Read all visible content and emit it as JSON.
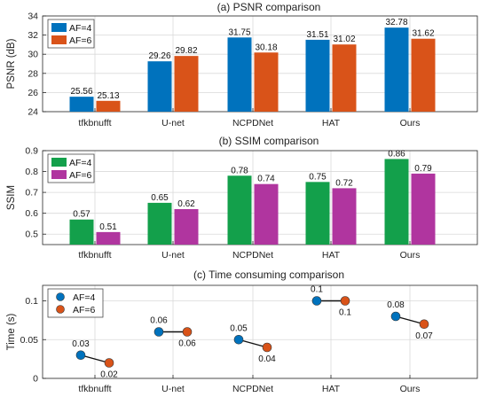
{
  "chart_data": [
    {
      "type": "bar",
      "title": "(a) PSNR comparison",
      "ylabel": "PSNR (dB)",
      "xlabel": "",
      "categories": [
        "tfkbnufft",
        "U-net",
        "NCPDNet",
        "HAT",
        "Ours"
      ],
      "series": [
        {
          "name": "AF=4",
          "color": "#0072BD",
          "values": [
            25.56,
            29.26,
            31.75,
            31.51,
            32.78
          ]
        },
        {
          "name": "AF=6",
          "color": "#D95319",
          "values": [
            25.13,
            29.82,
            30.18,
            31.02,
            31.62
          ]
        }
      ],
      "labels": [
        [
          "25.56",
          "29.26",
          "31.75",
          "31.51",
          "32.78"
        ],
        [
          "25.13",
          "29.82",
          "30.18",
          "31.02",
          "31.62"
        ]
      ],
      "ylim": [
        24,
        34
      ],
      "yticks": [
        24,
        26,
        28,
        30,
        32,
        34
      ],
      "ytick_labels": [
        "24",
        "26",
        "28",
        "30",
        "32",
        "34"
      ],
      "grid": true,
      "legend": "top-left"
    },
    {
      "type": "bar",
      "title": "(b) SSIM comparison",
      "ylabel": "SSIM",
      "xlabel": "",
      "categories": [
        "tfkbnufft",
        "U-net",
        "NCPDNet",
        "HAT",
        "Ours"
      ],
      "series": [
        {
          "name": "AF=4",
          "color": "#13A04B",
          "values": [
            0.57,
            0.65,
            0.78,
            0.75,
            0.86
          ]
        },
        {
          "name": "AF=6",
          "color": "#B0359F",
          "values": [
            0.51,
            0.62,
            0.74,
            0.72,
            0.79
          ]
        }
      ],
      "labels": [
        [
          "0.57",
          "0.65",
          "0.78",
          "0.75",
          "0.86"
        ],
        [
          "0.51",
          "0.62",
          "0.74",
          "0.72",
          "0.79"
        ]
      ],
      "ylim": [
        0.45,
        0.9
      ],
      "yticks": [
        0.5,
        0.6,
        0.7,
        0.8,
        0.9
      ],
      "ytick_labels": [
        "0.5",
        "0.6",
        "0.7",
        "0.8",
        "0.9"
      ],
      "grid": true,
      "legend": "top-left"
    },
    {
      "type": "scatter",
      "title": "(c) Time consuming comparison",
      "ylabel": "Time (s)",
      "xlabel": "",
      "categories": [
        "tfkbnufft",
        "U-net",
        "NCPDNet",
        "HAT",
        "Ours"
      ],
      "series": [
        {
          "name": "AF=4",
          "color": "#0072BD",
          "values": [
            0.03,
            0.06,
            0.05,
            0.1,
            0.08
          ]
        },
        {
          "name": "AF=6",
          "color": "#D95319",
          "values": [
            0.02,
            0.06,
            0.04,
            0.1,
            0.07
          ]
        }
      ],
      "labels": [
        [
          "0.03",
          "0.06",
          "0.05",
          "0.1",
          "0.08"
        ],
        [
          "0.02",
          "0.06",
          "0.04",
          "0.1",
          "0.07"
        ]
      ],
      "ylim": [
        0,
        0.12
      ],
      "yticks": [
        0,
        0.05,
        0.1
      ],
      "ytick_labels": [
        "0",
        "0.05",
        "0.1"
      ],
      "grid": true,
      "legend": "top-left"
    }
  ]
}
